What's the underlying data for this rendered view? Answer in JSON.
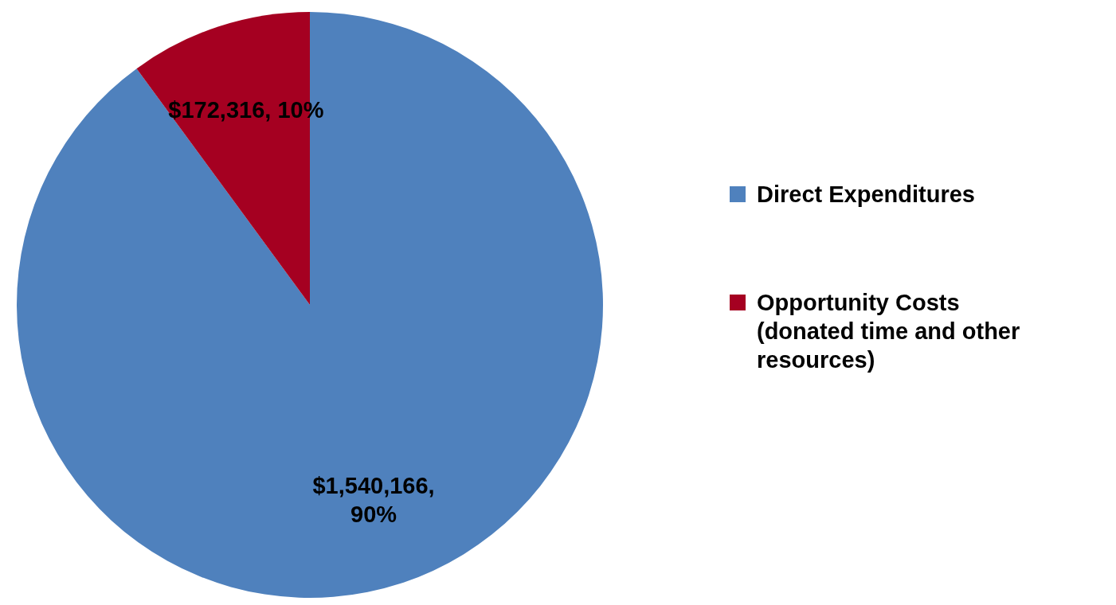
{
  "chart_data": {
    "type": "pie",
    "categories": [
      "Direct Expenditures",
      "Opportunity Costs (donated time and other resources)"
    ],
    "values": [
      1540166,
      172316
    ],
    "colors": [
      "#4f81bd",
      "#a50021"
    ],
    "value_labels": [
      "$1,540,166, 90%",
      "$172,316, 10%"
    ],
    "legend": "right"
  }
}
